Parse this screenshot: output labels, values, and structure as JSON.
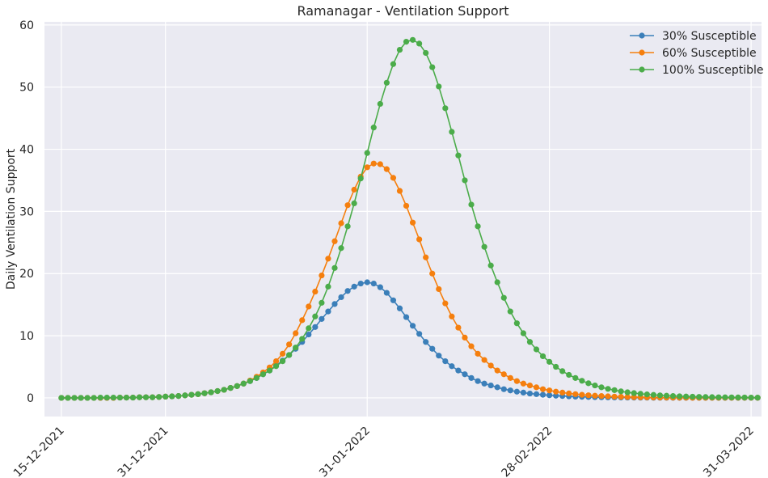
{
  "chart_data": {
    "type": "line",
    "title": "Ramanagar - Ventilation Support",
    "xlabel": "",
    "ylabel": "Daily Ventilation Support",
    "x_type": "date",
    "x_start": "2021-12-15",
    "x_step_days": 1,
    "x_ticks": [
      {
        "date": "2021-12-15",
        "label": "15-12-2021"
      },
      {
        "date": "2021-12-31",
        "label": "31-12-2021"
      },
      {
        "date": "2022-01-31",
        "label": "31-01-2022"
      },
      {
        "date": "2022-02-28",
        "label": "28-02-2022"
      },
      {
        "date": "2022-03-31",
        "label": "31-03-2022"
      }
    ],
    "yticks": [
      0,
      10,
      20,
      30,
      40,
      50,
      60
    ],
    "ylim": [
      -3,
      60.5
    ],
    "grid": true,
    "legend_position": "top-right",
    "series": [
      {
        "name": "30% Susceptible",
        "color": "#3b7fb9",
        "values": [
          0,
          0,
          0,
          0,
          0,
          0,
          0,
          0,
          0,
          0.05,
          0.05,
          0.05,
          0.1,
          0.1,
          0.1,
          0.15,
          0.2,
          0.25,
          0.3,
          0.4,
          0.5,
          0.6,
          0.75,
          0.9,
          1.1,
          1.3,
          1.6,
          1.9,
          2.3,
          2.7,
          3.2,
          3.8,
          4.4,
          5.2,
          6.0,
          6.9,
          7.9,
          9.0,
          10.2,
          11.4,
          12.7,
          13.9,
          15.1,
          16.2,
          17.2,
          17.9,
          18.4,
          18.6,
          18.4,
          17.8,
          16.9,
          15.7,
          14.4,
          13.0,
          11.6,
          10.3,
          9.0,
          7.9,
          6.8,
          5.9,
          5.1,
          4.4,
          3.8,
          3.2,
          2.7,
          2.3,
          2.0,
          1.7,
          1.4,
          1.2,
          1.0,
          0.85,
          0.7,
          0.6,
          0.5,
          0.42,
          0.35,
          0.3,
          0.25,
          0.2,
          0.17,
          0.14,
          0.12,
          0.1,
          0.08,
          0.07,
          0.06,
          0.05,
          0.04,
          0.03,
          0.03,
          0.02,
          0.02,
          0.02,
          0.01,
          0.01,
          0.01,
          0.01,
          0.01,
          0.01,
          0.01,
          0.01,
          0.01,
          0.01,
          0.01,
          0.01,
          0.01,
          0.01
        ]
      },
      {
        "name": "60% Susceptible",
        "color": "#f57f0e",
        "values": [
          0,
          0,
          0,
          0,
          0,
          0,
          0,
          0,
          0,
          0.05,
          0.05,
          0.05,
          0.1,
          0.1,
          0.1,
          0.15,
          0.2,
          0.25,
          0.3,
          0.4,
          0.5,
          0.6,
          0.75,
          0.9,
          1.1,
          1.3,
          1.6,
          1.9,
          2.3,
          2.8,
          3.4,
          4.1,
          4.9,
          5.9,
          7.1,
          8.6,
          10.4,
          12.5,
          14.7,
          17.1,
          19.7,
          22.4,
          25.2,
          28.1,
          31.0,
          33.5,
          35.6,
          37.1,
          37.7,
          37.6,
          36.8,
          35.4,
          33.3,
          30.9,
          28.2,
          25.5,
          22.6,
          20.0,
          17.5,
          15.2,
          13.1,
          11.3,
          9.7,
          8.3,
          7.1,
          6.1,
          5.2,
          4.4,
          3.8,
          3.2,
          2.7,
          2.3,
          2.0,
          1.7,
          1.4,
          1.2,
          1.0,
          0.85,
          0.72,
          0.6,
          0.5,
          0.42,
          0.35,
          0.3,
          0.25,
          0.2,
          0.17,
          0.14,
          0.12,
          0.1,
          0.08,
          0.07,
          0.06,
          0.05,
          0.04,
          0.03,
          0.03,
          0.02,
          0.02,
          0.02,
          0.02,
          0.02,
          0.02,
          0.02,
          0.02,
          0.02,
          0.02,
          0.02
        ]
      },
      {
        "name": "100% Susceptible",
        "color": "#4bac4a",
        "values": [
          0,
          0,
          0,
          0,
          0,
          0,
          0.05,
          0.05,
          0.05,
          0.05,
          0.05,
          0.05,
          0.1,
          0.1,
          0.1,
          0.15,
          0.2,
          0.25,
          0.3,
          0.4,
          0.5,
          0.6,
          0.75,
          0.9,
          1.1,
          1.3,
          1.6,
          1.9,
          2.3,
          2.7,
          3.2,
          3.8,
          4.4,
          5.1,
          5.9,
          6.9,
          8.1,
          9.5,
          11.2,
          13.1,
          15.3,
          17.9,
          20.9,
          24.1,
          27.6,
          31.3,
          35.3,
          39.4,
          43.5,
          47.3,
          50.7,
          53.7,
          56.0,
          57.3,
          57.6,
          57.0,
          55.5,
          53.2,
          50.1,
          46.6,
          42.8,
          39.0,
          35.0,
          31.1,
          27.6,
          24.3,
          21.3,
          18.6,
          16.1,
          13.9,
          12.0,
          10.4,
          9.0,
          7.8,
          6.7,
          5.8,
          5.0,
          4.3,
          3.7,
          3.2,
          2.75,
          2.35,
          2.0,
          1.7,
          1.45,
          1.25,
          1.05,
          0.9,
          0.77,
          0.66,
          0.56,
          0.48,
          0.41,
          0.35,
          0.3,
          0.26,
          0.22,
          0.19,
          0.16,
          0.14,
          0.12,
          0.1,
          0.09,
          0.08,
          0.07,
          0.06,
          0.05,
          0.04
        ]
      }
    ]
  }
}
